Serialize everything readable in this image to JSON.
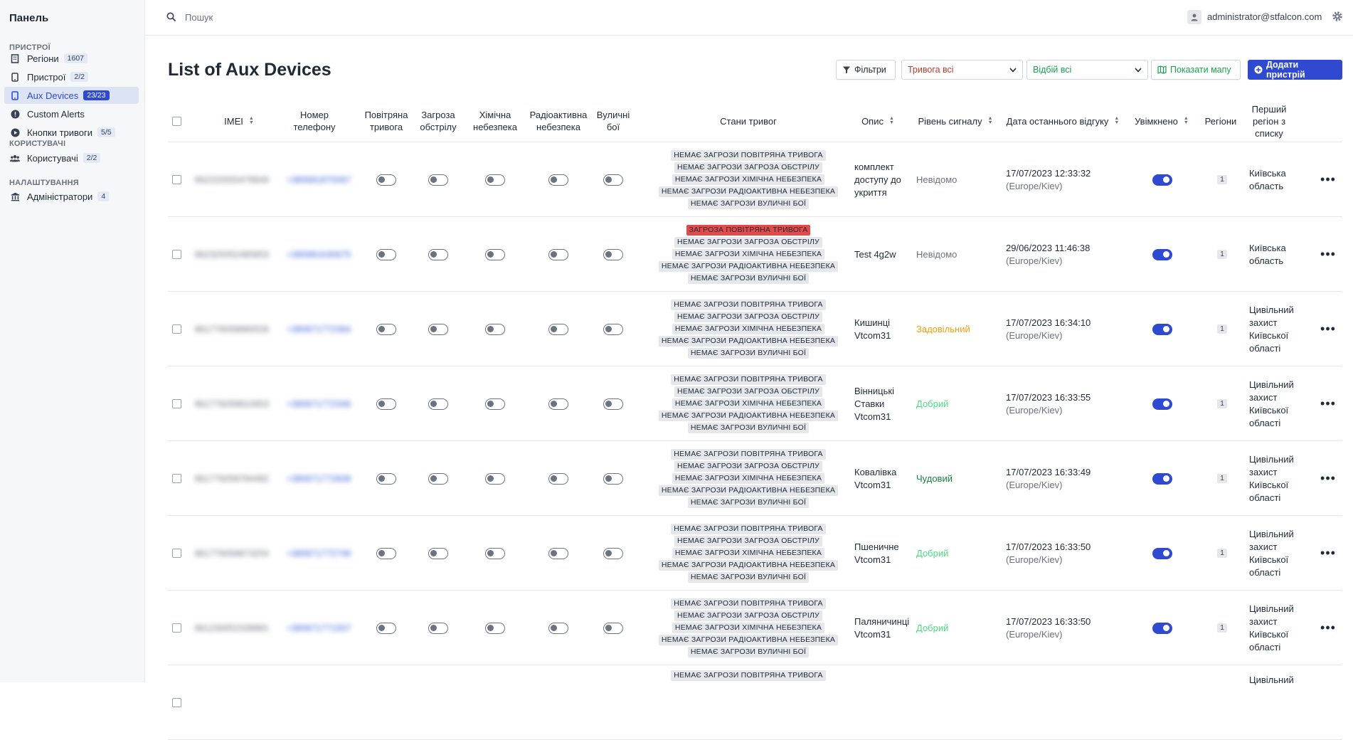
{
  "sidebar": {
    "brand": "Панель",
    "sections": [
      {
        "title": "ПРИСТРОЇ",
        "items": [
          {
            "label": "Регіони",
            "count": "1607",
            "icon": "building-icon",
            "active": false
          },
          {
            "label": "Пристрої",
            "count": "2/2",
            "icon": "phone-icon",
            "active": false
          },
          {
            "label": "Aux Devices",
            "count": "23/23",
            "icon": "phone-icon",
            "active": true
          },
          {
            "label": "Custom Alerts",
            "count": "",
            "icon": "alert-circle-icon",
            "active": false
          },
          {
            "label": "Кнопки тривоги",
            "count": "5/5",
            "icon": "play-circle-icon",
            "active": false
          }
        ]
      },
      {
        "title": "КОРИСТУВАЧІ",
        "items": [
          {
            "label": "Користувачі",
            "count": "2/2",
            "icon": "users-icon",
            "active": false
          }
        ]
      },
      {
        "title": "НАЛАШТУВАННЯ",
        "items": [
          {
            "label": "Адміністратори",
            "count": "4",
            "icon": "bank-icon",
            "active": false
          }
        ]
      }
    ]
  },
  "topbar": {
    "search_placeholder": "Пошук",
    "user_email": "administrator@stfalcon.com"
  },
  "header": {
    "title": "List of Aux Devices",
    "filters_label": "Фільтри",
    "alarm_select": "Тривога всі",
    "response_select": "Відбій всі",
    "map_button": "Показати мапу",
    "add_button": "Додати пристрій"
  },
  "colors": {
    "accent": "#2f49d1",
    "alert_red": "#e34a4a",
    "signal_unknown": "#6b7280",
    "signal_satisfactory": "#f59e0b",
    "signal_good": "#4ade80",
    "signal_excellent": "#15803d"
  },
  "table": {
    "headers": {
      "imei": "IMEI",
      "phone": "Номер телефону",
      "air": "Повітряна тривога",
      "shelling": "Загроза обстрілу",
      "chemical": "Хімічна небезпека",
      "radiation": "Радіоактивна небезпека",
      "street": "Вуличні бої",
      "states": "Стани тривог",
      "description": "Опис",
      "signal": "Рівень сигналу",
      "last_response": "Дата останнього відгуку",
      "enabled": "Увімкнено",
      "regions": "Регіони",
      "first_region": "Перший регіон з списку"
    },
    "rows": [
      {
        "imei": "862220050478849",
        "phone": "+380681870067",
        "states": [
          "НЕМАЄ ЗАГРОЗИ ПОВІТРЯНА ТРИВОГА",
          "НЕМАЄ ЗАГРОЗИ ЗАГРОЗА ОБСТРІЛУ",
          "НЕМАЄ ЗАГРОЗИ ХІМІЧНА НЕБЕЗПЕКА",
          "НЕМАЄ ЗАГРОЗИ РАДІОАКТИВНА НЕБЕЗПЕКА",
          "НЕМАЄ ЗАГРОЗИ ВУЛИЧНІ БОЇ"
        ],
        "alert_state": -1,
        "description": [
          "комплект",
          "доступу до",
          "укриття"
        ],
        "signal": "Невідомо",
        "signal_level": "unknown",
        "date": "17/07/2023 12:33:32",
        "tz": "(Europe/Kiev)",
        "regions": "1",
        "first_region": [
          "Київська",
          "область"
        ]
      },
      {
        "imei": "862325052485853",
        "phone": "+380981630675",
        "states": [
          "ЗАГРОЗА ПОВІТРЯНА ТРИВОГА",
          "НЕМАЄ ЗАГРОЗИ ЗАГРОЗА ОБСТРІЛУ",
          "НЕМАЄ ЗАГРОЗИ ХІМІЧНА НЕБЕЗПЕКА",
          "НЕМАЄ ЗАГРОЗИ РАДІОАКТИВНА НЕБЕЗПЕКА",
          "НЕМАЄ ЗАГРОЗИ ВУЛИЧНІ БОЇ"
        ],
        "alert_state": 0,
        "description": [
          "Test 4g2w"
        ],
        "signal": "Невідомо",
        "signal_level": "unknown",
        "date": "29/06/2023 11:46:38",
        "tz": "(Europe/Kiev)",
        "regions": "1",
        "first_region": [
          "Київська",
          "область"
        ]
      },
      {
        "imei": "861776058880526",
        "phone": "+380671772364",
        "states": [
          "НЕМАЄ ЗАГРОЗИ ПОВІТРЯНА ТРИВОГА",
          "НЕМАЄ ЗАГРОЗИ ЗАГРОЗА ОБСТРІЛУ",
          "НЕМАЄ ЗАГРОЗИ ХІМІЧНА НЕБЕЗПЕКА",
          "НЕМАЄ ЗАГРОЗИ РАДІОАКТИВНА НЕБЕЗПЕКА",
          "НЕМАЄ ЗАГРОЗИ ВУЛИЧНІ БОЇ"
        ],
        "alert_state": -1,
        "description": [
          "Кишинці",
          "Vtcom31"
        ],
        "signal": "Задовільний",
        "signal_level": "satisfactory",
        "date": "17/07/2023 16:34:10",
        "tz": "(Europe/Kiev)",
        "regions": "1",
        "first_region": [
          "Цивільний",
          "захист",
          "Київської",
          "області"
        ]
      },
      {
        "imei": "861776058810953",
        "phone": "+380671772346",
        "states": [
          "НЕМАЄ ЗАГРОЗИ ПОВІТРЯНА ТРИВОГА",
          "НЕМАЄ ЗАГРОЗИ ЗАГРОЗА ОБСТРІЛУ",
          "НЕМАЄ ЗАГРОЗИ ХІМІЧНА НЕБЕЗПЕКА",
          "НЕМАЄ ЗАГРОЗИ РАДІОАКТИВНА НЕБЕЗПЕКА",
          "НЕМАЄ ЗАГРОЗИ ВУЛИЧНІ БОЇ"
        ],
        "alert_state": -1,
        "description": [
          "Вінницькі",
          "Ставки",
          "Vtcom31"
        ],
        "signal": "Добрий",
        "signal_level": "good",
        "date": "17/07/2023 16:33:55",
        "tz": "(Europe/Kiev)",
        "regions": "1",
        "first_region": [
          "Цивільний",
          "захист",
          "Київської",
          "області"
        ]
      },
      {
        "imei": "861776058784482",
        "phone": "+380671772608",
        "states": [
          "НЕМАЄ ЗАГРОЗИ ПОВІТРЯНА ТРИВОГА",
          "НЕМАЄ ЗАГРОЗИ ЗАГРОЗА ОБСТРІЛУ",
          "НЕМАЄ ЗАГРОЗИ ХІМІЧНА НЕБЕЗПЕКА",
          "НЕМАЄ ЗАГРОЗИ РАДІОАКТИВНА НЕБЕЗПЕКА",
          "НЕМАЄ ЗАГРОЗИ ВУЛИЧНІ БОЇ"
        ],
        "alert_state": -1,
        "description": [
          "Ковалівка",
          "Vtcom31"
        ],
        "signal": "Чудовий",
        "signal_level": "excellent",
        "date": "17/07/2023 16:33:49",
        "tz": "(Europe/Kiev)",
        "regions": "1",
        "first_region": [
          "Цивільний",
          "захист",
          "Київської",
          "області"
        ]
      },
      {
        "imei": "861776058873254",
        "phone": "+380671772746",
        "states": [
          "НЕМАЄ ЗАГРОЗИ ПОВІТРЯНА ТРИВОГА",
          "НЕМАЄ ЗАГРОЗИ ЗАГРОЗА ОБСТРІЛУ",
          "НЕМАЄ ЗАГРОЗИ ХІМІЧНА НЕБЕЗПЕКА",
          "НЕМАЄ ЗАГРОЗИ РАДІОАКТИВНА НЕБЕЗПЕКА",
          "НЕМАЄ ЗАГРОЗИ ВУЛИЧНІ БОЇ"
        ],
        "alert_state": -1,
        "description": [
          "Пшеничне",
          "Vtcom31"
        ],
        "signal": "Добрий",
        "signal_level": "good",
        "date": "17/07/2023 16:33:50",
        "tz": "(Europe/Kiev)",
        "regions": "1",
        "first_region": [
          "Цивільний",
          "захист",
          "Київської",
          "області"
        ]
      },
      {
        "imei": "861230052338881",
        "phone": "+380671771507",
        "states": [
          "НЕМАЄ ЗАГРОЗИ ПОВІТРЯНА ТРИВОГА",
          "НЕМАЄ ЗАГРОЗИ ЗАГРОЗА ОБСТРІЛУ",
          "НЕМАЄ ЗАГРОЗИ ХІМІЧНА НЕБЕЗПЕКА",
          "НЕМАЄ ЗАГРОЗИ РАДІОАКТИВНА НЕБЕЗПЕКА",
          "НЕМАЄ ЗАГРОЗИ ВУЛИЧНІ БОЇ"
        ],
        "alert_state": -1,
        "description": [
          "Паляничинці",
          "Vtcom31"
        ],
        "signal": "Добрий",
        "signal_level": "good",
        "date": "17/07/2023 16:33:50",
        "tz": "(Europe/Kiev)",
        "regions": "1",
        "first_region": [
          "Цивільний",
          "захист",
          "Київської",
          "області"
        ]
      },
      {
        "imei": "",
        "phone": "",
        "states": [
          "НЕМАЄ ЗАГРОЗИ ПОВІТРЯНА ТРИВОГА"
        ],
        "alert_state": -1,
        "description": [],
        "signal": "",
        "signal_level": "unknown",
        "date": "",
        "tz": "",
        "regions": "",
        "first_region": [
          "Цивільний"
        ]
      }
    ]
  }
}
